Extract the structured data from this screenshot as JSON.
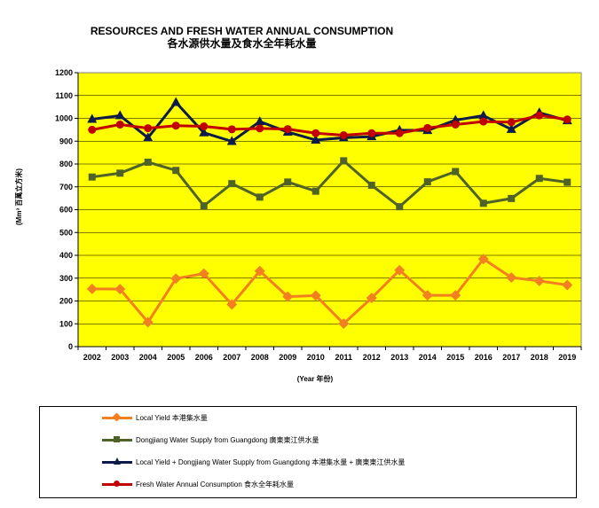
{
  "title": {
    "line1": "RESOURCES AND FRESH WATER ANNUAL CONSUMPTION",
    "line2": "各水源供水量及食水全年耗水量"
  },
  "chart_data": {
    "type": "line",
    "title": "RESOURCES AND FRESH WATER ANNUAL CONSUMPTION 各水源供水量及食水全年耗水量",
    "xlabel": "(Year 年份)",
    "ylabel": "(Mm³ 百萬立方米)",
    "ylim": [
      0,
      1200
    ],
    "ytick_step": 100,
    "grid": true,
    "legend_position": "bottom",
    "plot_background": "#ffff00",
    "categories": [
      "2002",
      "2003",
      "2004",
      "2005",
      "2006",
      "2007",
      "2008",
      "2009",
      "2010",
      "2011",
      "2012",
      "2013",
      "2014",
      "2015",
      "2016",
      "2017",
      "2018",
      "2019"
    ],
    "series": [
      {
        "name": "Local Yield 本港集水量",
        "color": "#f28020",
        "marker": "diamond",
        "values": [
          253,
          252,
          107,
          298,
          320,
          185,
          331,
          219,
          224,
          101,
          213,
          335,
          225,
          225,
          384,
          303,
          288,
          270
        ]
      },
      {
        "name": "Dongjiang Water Supply from Guangdong 廣東東江供水量",
        "color": "#4f6228",
        "marker": "square",
        "values": [
          743,
          760,
          808,
          772,
          617,
          714,
          655,
          721,
          681,
          814,
          707,
          613,
          722,
          767,
          628,
          649,
          737,
          720
        ]
      },
      {
        "name": "Local Yield + Dongjiang Water Supply from Guangdong 本港集水量 + 廣東東江供水量",
        "color": "#0d1b4a",
        "marker": "triangle",
        "values": [
          996,
          1012,
          915,
          1070,
          937,
          899,
          986,
          940,
          905,
          915,
          920,
          948,
          947,
          992,
          1012,
          952,
          1025,
          990
        ]
      },
      {
        "name": "Fresh Water Annual Consumption 食水全年耗水量",
        "color": "#c00000",
        "marker": "circle",
        "values": [
          950,
          973,
          957,
          968,
          965,
          952,
          956,
          953,
          935,
          926,
          935,
          935,
          958,
          973,
          986,
          983,
          1013,
          995
        ]
      }
    ]
  }
}
